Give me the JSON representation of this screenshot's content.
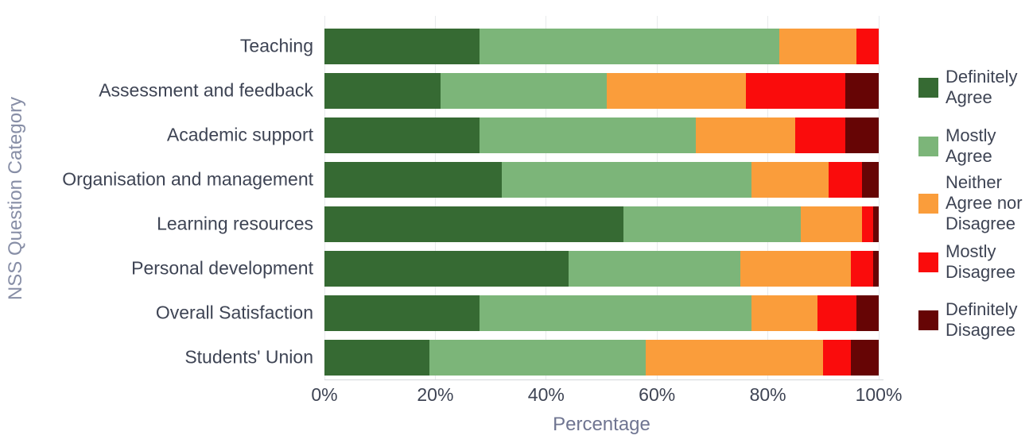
{
  "axes": {
    "x_title": "Percentage",
    "y_title": "NSS Question Category"
  },
  "chart_data": {
    "type": "bar",
    "orientation": "horizontal",
    "stacked": true,
    "title": "",
    "xlabel": "Percentage",
    "ylabel": "NSS Question Category",
    "xlim": [
      0,
      100
    ],
    "grid": true,
    "legend_position": "right",
    "x_ticks": [
      {
        "label": "0%",
        "value": 0
      },
      {
        "label": "20%",
        "value": 20
      },
      {
        "label": "40%",
        "value": 40
      },
      {
        "label": "60%",
        "value": 60
      },
      {
        "label": "80%",
        "value": 80
      },
      {
        "label": "100%",
        "value": 100
      }
    ],
    "categories": [
      "Teaching",
      "Assessment and feedback",
      "Academic support",
      "Organisation and management",
      "Learning resources",
      "Personal development",
      "Overall Satisfaction",
      "Students' Union"
    ],
    "series": [
      {
        "name": "Definitely Agree",
        "label_lines": [
          "Definitely",
          "Agree"
        ],
        "color": "#366A33",
        "values": [
          28,
          21,
          28,
          32,
          54,
          44,
          28,
          19
        ]
      },
      {
        "name": "Mostly Agree",
        "label_lines": [
          "Mostly",
          "Agree"
        ],
        "color": "#7CB579",
        "values": [
          54,
          30,
          39,
          45,
          32,
          31,
          49,
          39
        ]
      },
      {
        "name": "Neither Agree nor Disagree",
        "label_lines": [
          "Neither",
          "Agree nor",
          "Disagree"
        ],
        "color": "#FA9D3B",
        "values": [
          14,
          25,
          18,
          14,
          11,
          20,
          12,
          32
        ]
      },
      {
        "name": "Mostly Disagree",
        "label_lines": [
          "Mostly",
          "Disagree"
        ],
        "color": "#FA0C0C",
        "values": [
          4,
          18,
          9,
          6,
          2,
          4,
          7,
          5
        ]
      },
      {
        "name": "Definitely Disagree",
        "label_lines": [
          "Definitely",
          "Disagree"
        ],
        "color": "#660505",
        "values": [
          0,
          6,
          6,
          3,
          1,
          1,
          4,
          5
        ]
      }
    ],
    "colors": {
      "definitely_agree": "#366A33",
      "mostly_agree": "#7CB579",
      "neither_agree_nor_disagree": "#FA9D3B",
      "mostly_disagree": "#FA0C0C",
      "definitely_disagree": "#660505",
      "tick_text": "#3e4454",
      "axis_title_text": "#6f7591",
      "y_axis_title_text": "#878ea6",
      "gridline": "#e8eaec"
    }
  }
}
